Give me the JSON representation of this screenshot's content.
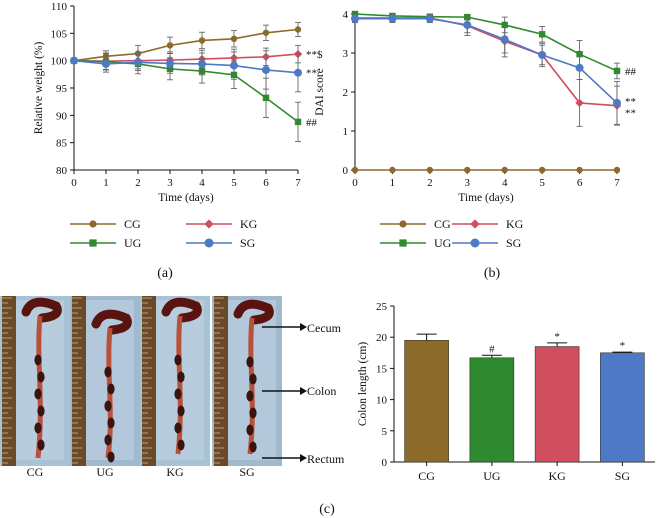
{
  "panels": {
    "a": "(a)",
    "b": "(b)",
    "c": "(c)"
  },
  "colors": {
    "CG": "#8b6a2a",
    "UG": "#2f8a2f",
    "KG": "#cf4f5f",
    "SG": "#4d79c7"
  },
  "chart_data": [
    {
      "id": "weight",
      "type": "line",
      "xlabel": "Time (days)",
      "ylabel": "Relative weight (%)",
      "xlim": [
        0,
        7
      ],
      "ylim": [
        80,
        110
      ],
      "xticks": [
        0,
        1,
        2,
        3,
        4,
        5,
        6,
        7
      ],
      "yticks": [
        80,
        85,
        90,
        95,
        100,
        105,
        110
      ],
      "x": [
        0,
        1,
        2,
        3,
        4,
        5,
        6,
        7
      ],
      "series": [
        {
          "name": "CG",
          "marker": "circle",
          "values": [
            100,
            100.8,
            101.3,
            102.8,
            103.7,
            104.0,
            105.1,
            105.7
          ],
          "err": [
            0.3,
            1.0,
            1.5,
            1.5,
            1.5,
            1.5,
            1.4,
            1.3
          ]
        },
        {
          "name": "KG",
          "marker": "diamond",
          "values": [
            100,
            99.9,
            100.0,
            100.1,
            100.3,
            100.5,
            100.7,
            101.2
          ],
          "err": [
            0.3,
            1.5,
            1.5,
            1.5,
            1.6,
            1.6,
            1.6,
            1.6
          ]
        },
        {
          "name": "UG",
          "marker": "square",
          "values": [
            100,
            99.8,
            99.4,
            98.5,
            98.1,
            97.4,
            93.2,
            88.8
          ],
          "err": [
            0.3,
            1.5,
            1.8,
            2.0,
            2.2,
            2.5,
            3.6,
            3.6
          ]
        },
        {
          "name": "SG",
          "marker": "circle",
          "values": [
            100,
            99.4,
            99.7,
            99.5,
            99.4,
            99.1,
            98.3,
            97.8
          ],
          "err": [
            0.3,
            1.5,
            1.5,
            1.8,
            2.0,
            2.5,
            3.5,
            3.5
          ]
        }
      ],
      "annotations": [
        {
          "series": "KG",
          "text": "**$"
        },
        {
          "series": "SG",
          "text": "**"
        },
        {
          "series": "UG",
          "text": "##"
        }
      ],
      "legend": {
        "position": "bottom",
        "items": [
          "CG",
          "KG",
          "UG",
          "SG"
        ]
      }
    },
    {
      "id": "dai",
      "type": "line",
      "xlabel": "Time (days)",
      "ylabel": "DAI score",
      "xlim": [
        0,
        7
      ],
      "ylim": [
        0,
        4
      ],
      "xticks": [
        0,
        1,
        2,
        3,
        4,
        5,
        6,
        7
      ],
      "yticks": [
        0,
        1,
        2,
        3,
        4
      ],
      "x": [
        0,
        1,
        2,
        3,
        4,
        5,
        6,
        7
      ],
      "series": [
        {
          "name": "CG",
          "marker": "circle",
          "values": [
            0,
            0,
            0,
            0,
            0,
            0,
            0,
            0
          ],
          "err": [
            0,
            0,
            0,
            0,
            0,
            0,
            0,
            0
          ]
        },
        {
          "name": "KG",
          "marker": "diamond",
          "values": [
            3.9,
            3.9,
            3.9,
            3.7,
            3.3,
            2.95,
            1.72,
            1.65
          ],
          "err": [
            0.1,
            0.1,
            0.1,
            0.25,
            0.4,
            0.25,
            0.6,
            0.5
          ]
        },
        {
          "name": "UG",
          "marker": "square",
          "values": [
            4.0,
            3.95,
            3.93,
            3.92,
            3.72,
            3.48,
            2.97,
            2.54
          ],
          "err": [
            0.05,
            0.06,
            0.07,
            0.07,
            0.2,
            0.2,
            0.35,
            0.2
          ]
        },
        {
          "name": "SG",
          "marker": "circle",
          "values": [
            3.88,
            3.88,
            3.88,
            3.72,
            3.35,
            2.95,
            2.62,
            1.72
          ],
          "err": [
            0.1,
            0.1,
            0.1,
            0.2,
            0.35,
            0.3,
            0.3,
            0.55
          ]
        }
      ],
      "annotations": [
        {
          "series": "UG",
          "text": "##"
        },
        {
          "series": "SG",
          "text": "**"
        },
        {
          "series": "KG",
          "text": "**"
        }
      ],
      "legend": {
        "position": "bottom",
        "items": [
          "CG",
          "KG",
          "UG",
          "SG"
        ]
      }
    },
    {
      "id": "colon",
      "type": "bar",
      "ylabel": "Colon length (cm)",
      "ylim": [
        0,
        25
      ],
      "yticks": [
        0,
        5,
        10,
        15,
        20,
        25
      ],
      "categories": [
        "CG",
        "UG",
        "KG",
        "SG"
      ],
      "values": [
        19.5,
        16.7,
        18.5,
        17.5
      ],
      "err": [
        1.0,
        0.4,
        0.6,
        0.1
      ],
      "annotations": [
        "",
        "#",
        "*",
        "*"
      ]
    }
  ],
  "photo": {
    "specimens": [
      "CG",
      "UG",
      "KG",
      "SG"
    ],
    "labels": {
      "cecum": "Cecum",
      "colon": "Colon",
      "rectum": "Rectum"
    }
  }
}
